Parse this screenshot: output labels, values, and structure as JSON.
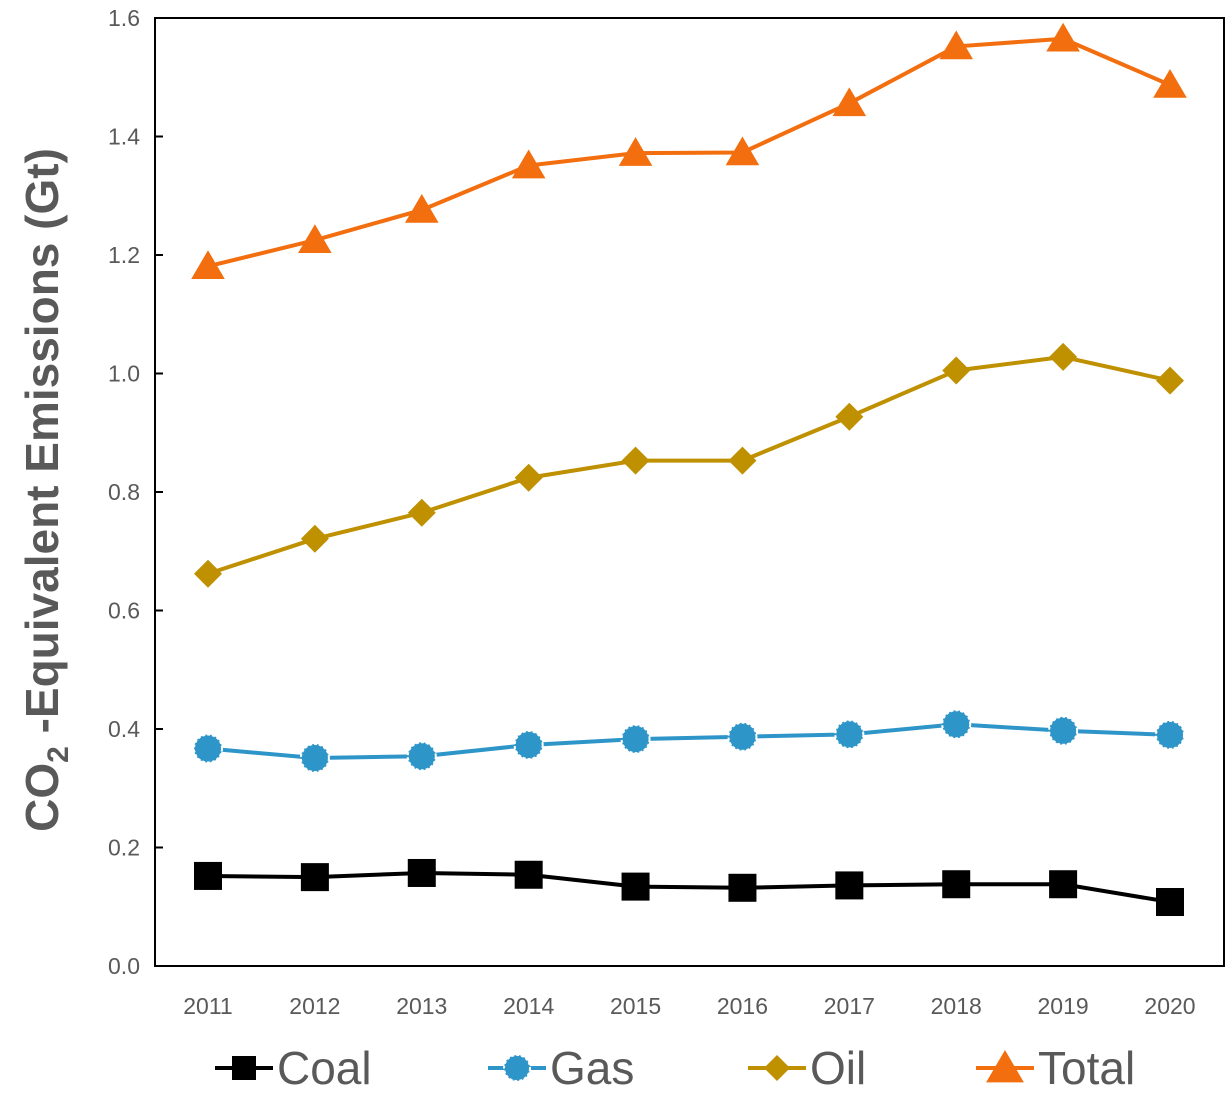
{
  "chart_data": {
    "type": "line",
    "title": "",
    "xlabel": "",
    "ylabel": {
      "main": "CO",
      "subscript": "2",
      "rest": " -Equivalent  Emissions  (Gt)"
    },
    "categories": [
      "2011",
      "2012",
      "2013",
      "2014",
      "2015",
      "2016",
      "2017",
      "2018",
      "2019",
      "2020"
    ],
    "ylim": [
      0.0,
      1.6
    ],
    "yticks": [
      "0.0",
      "0.2",
      "0.4",
      "0.6",
      "0.8",
      "1.0",
      "1.2",
      "1.4",
      "1.6"
    ],
    "grid": false,
    "legend_position": "bottom",
    "series": [
      {
        "name": "Coal",
        "color": "#000000",
        "marker": "square",
        "values": [
          0.152,
          0.15,
          0.157,
          0.154,
          0.134,
          0.132,
          0.136,
          0.138,
          0.138,
          0.108
        ]
      },
      {
        "name": "Gas",
        "color": "#2E95C9",
        "marker": "circle",
        "values": [
          0.367,
          0.351,
          0.354,
          0.373,
          0.383,
          0.387,
          0.391,
          0.408,
          0.397,
          0.39
        ]
      },
      {
        "name": "Oil",
        "color": "#BF9000",
        "marker": "diamond",
        "values": [
          0.662,
          0.721,
          0.765,
          0.824,
          0.853,
          0.853,
          0.927,
          1.005,
          1.028,
          0.988
        ]
      },
      {
        "name": "Total",
        "color": "#F26E0F",
        "marker": "triangle",
        "values": [
          1.181,
          1.225,
          1.276,
          1.351,
          1.372,
          1.373,
          1.456,
          1.552,
          1.565,
          1.487
        ]
      }
    ]
  }
}
